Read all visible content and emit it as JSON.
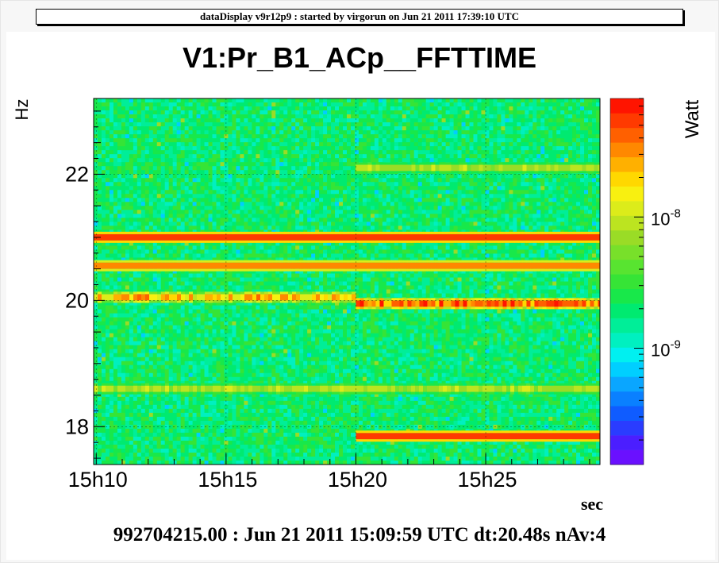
{
  "header": {
    "text": "dataDisplay v9r12p9 : started by virgorun on Jun 21 2011 17:39:10 UTC"
  },
  "footer": {
    "text": "992704215.00 : Jun 21 2011 15:09:59 UTC dt:20.48s nAv:4"
  },
  "chart_data": {
    "type": "heatmap",
    "title": "V1:Pr_B1_ACp__FFTTIME",
    "xlabel": "sec",
    "ylabel": "Hz",
    "colorbar_label": "Watt",
    "x_tick_labels": [
      "15h10",
      "15h15",
      "15h20",
      "15h25"
    ],
    "x_ticks_min": [
      10,
      15,
      20,
      25
    ],
    "xlim_min": [
      9.9,
      29.4
    ],
    "y_ticks": [
      18,
      20,
      22
    ],
    "ylim": [
      17.4,
      23.2
    ],
    "colorbar_scale": "log",
    "colorbar_tick_labels": [
      {
        "value": 1e-08,
        "base": "10",
        "exp": "-8"
      },
      {
        "value": 1e-09,
        "base": "10",
        "exp": "-9"
      }
    ],
    "colorbar_range": [
      1.3e-10,
      8e-08
    ],
    "grid": true,
    "background_level_watt": 2e-09,
    "lines": [
      {
        "freq_hz": 21.0,
        "t_start_min": 9.9,
        "t_end_min": 29.4,
        "level_watt": 6e-08,
        "character": "continuous"
      },
      {
        "freq_hz": 20.55,
        "t_start_min": 9.9,
        "t_end_min": 29.4,
        "level_watt": 3e-08,
        "character": "continuous"
      },
      {
        "freq_hz": 20.05,
        "t_start_min": 9.9,
        "t_end_min": 20.0,
        "level_watt": 1.5e-08,
        "character": "intermittent"
      },
      {
        "freq_hz": 19.95,
        "t_start_min": 20.0,
        "t_end_min": 29.4,
        "level_watt": 3e-08,
        "character": "intermittent"
      },
      {
        "freq_hz": 22.1,
        "t_start_min": 20.0,
        "t_end_min": 29.4,
        "level_watt": 8e-09,
        "character": "faint"
      },
      {
        "freq_hz": 18.6,
        "t_start_min": 9.9,
        "t_end_min": 29.4,
        "level_watt": 8e-09,
        "character": "faint"
      },
      {
        "freq_hz": 17.85,
        "t_start_min": 20.0,
        "t_end_min": 29.4,
        "level_watt": 6e-08,
        "character": "continuous"
      }
    ],
    "colors": {
      "palette": [
        "#6a10ff",
        "#4b1eff",
        "#2a3cff",
        "#0f5cff",
        "#0a80ff",
        "#0aa6ff",
        "#00cfff",
        "#00f0f0",
        "#00f0c0",
        "#00ee98",
        "#00ea70",
        "#18e84a",
        "#36e436",
        "#58e430",
        "#78e02a",
        "#9adc26",
        "#bce420",
        "#dcec1a",
        "#f8f010",
        "#ffd800",
        "#ffb000",
        "#ff8800",
        "#ff6000",
        "#ff3a00",
        "#ff1400"
      ]
    }
  }
}
